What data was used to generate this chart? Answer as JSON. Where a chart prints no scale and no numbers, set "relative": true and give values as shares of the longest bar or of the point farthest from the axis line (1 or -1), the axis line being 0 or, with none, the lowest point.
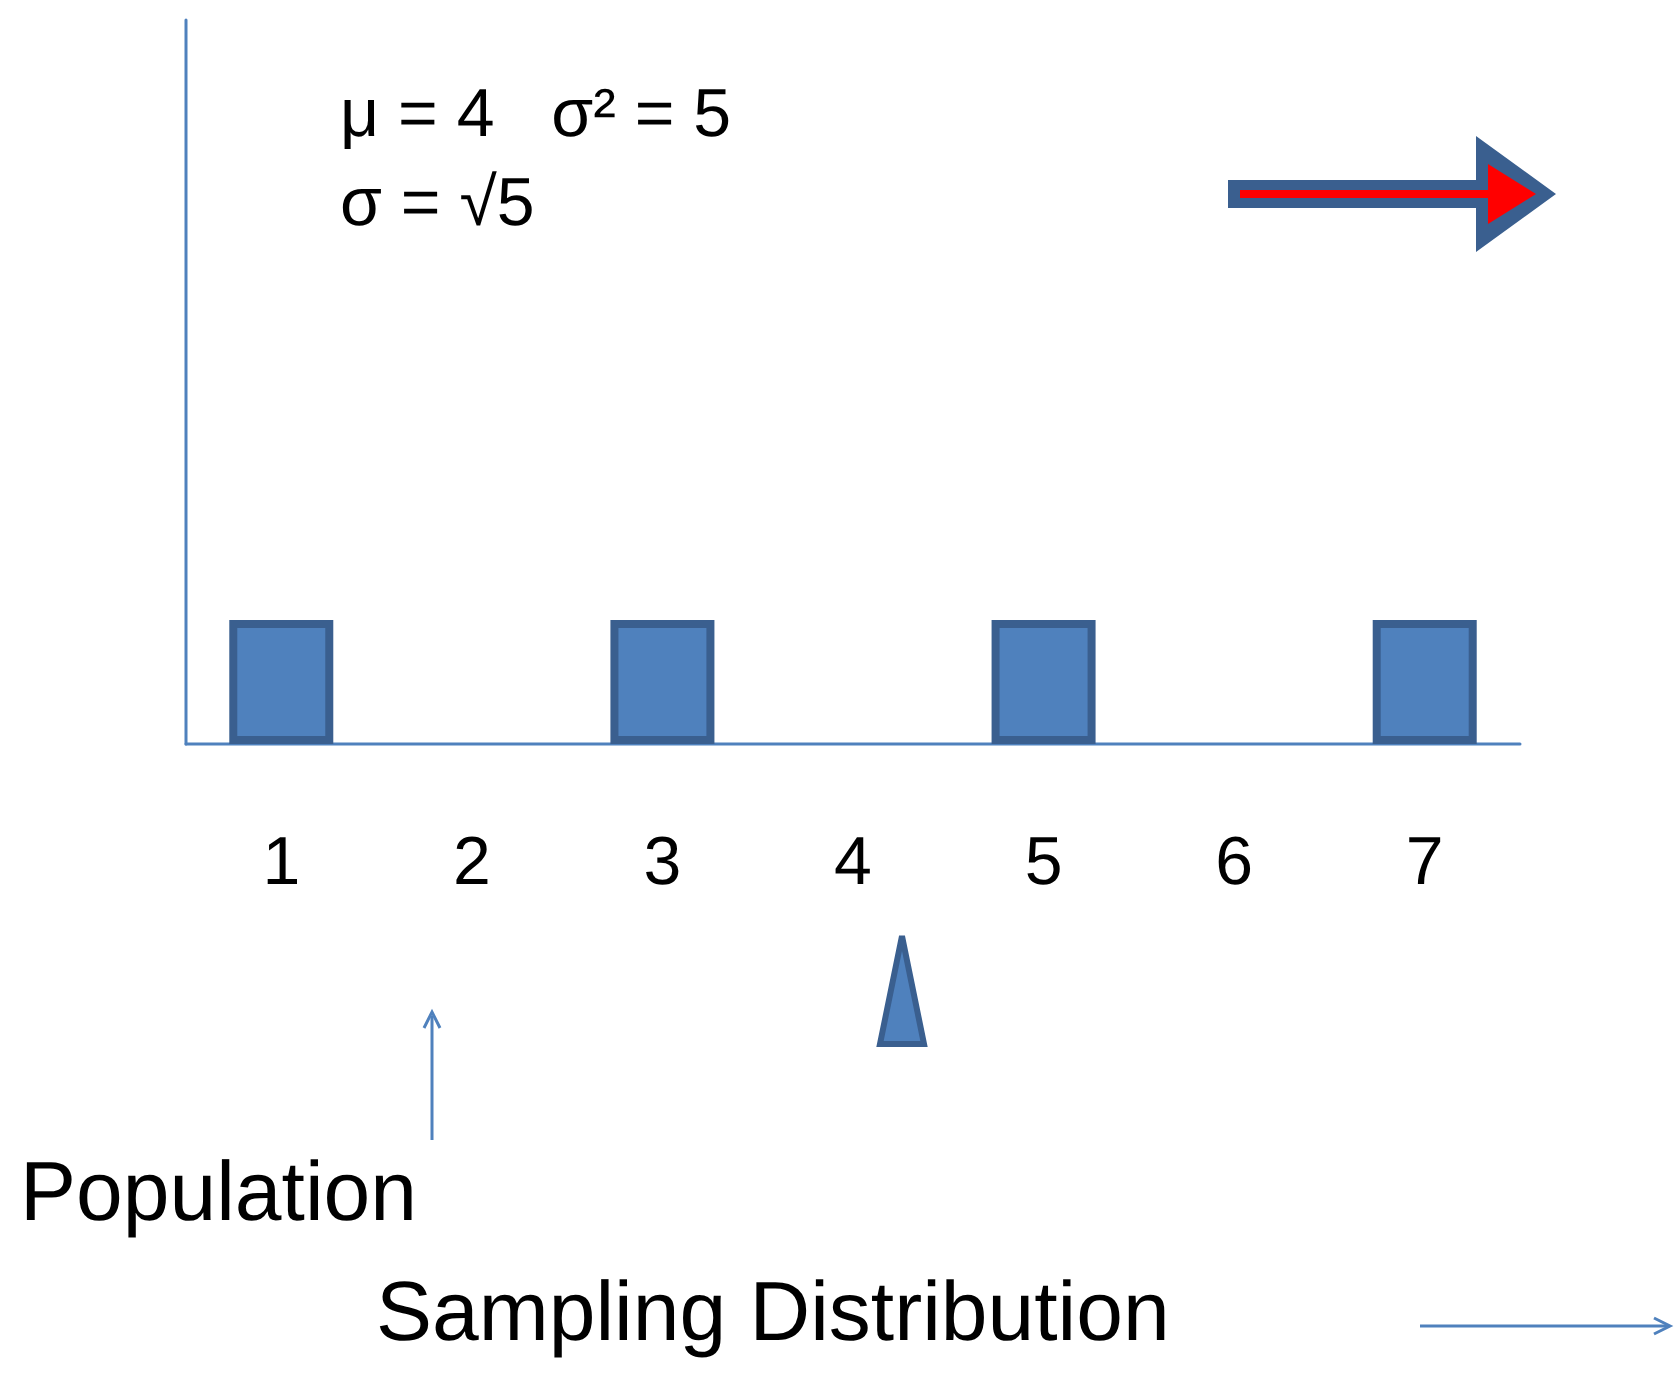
{
  "chart_data": {
    "type": "bar",
    "relative": true,
    "categories": [
      "1",
      "2",
      "3",
      "4",
      "5",
      "6",
      "7"
    ],
    "values": [
      1,
      null,
      1,
      null,
      1,
      null,
      1
    ],
    "color": "#4f81bd",
    "annotations": [
      "μ = 4   σ² = 5   σ = √5",
      "Population",
      "Sampling Distribution"
    ]
  }
}
